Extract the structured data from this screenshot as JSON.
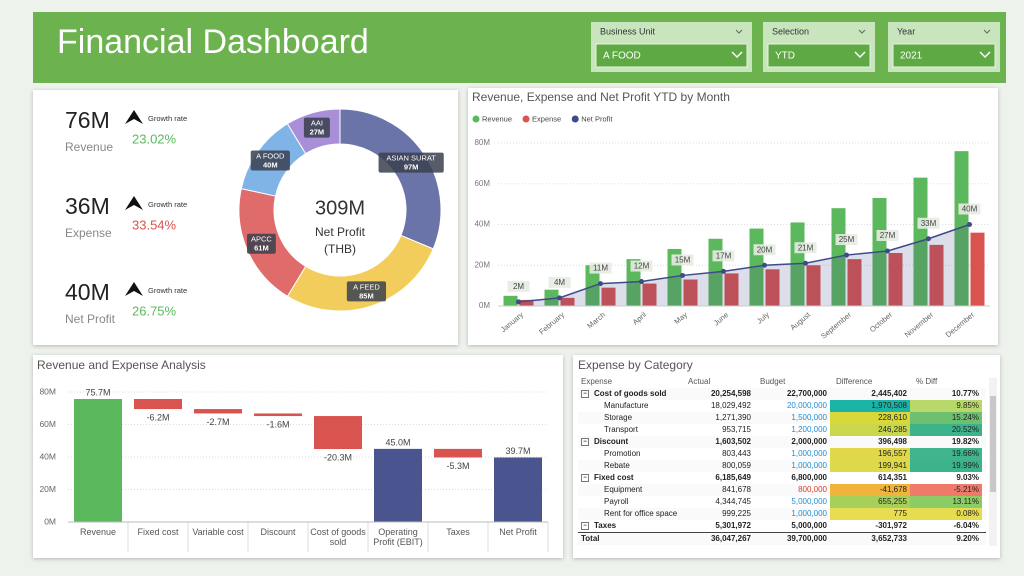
{
  "header": {
    "title": "Financial Dashboard"
  },
  "filters": [
    {
      "label": "Business Unit",
      "value": "A FOOD"
    },
    {
      "label": "Selection",
      "value": "YTD"
    },
    {
      "label": "Year",
      "value": "2021"
    }
  ],
  "kpis": [
    {
      "value": "76M",
      "label": "Revenue",
      "growth_label": "Growth rate",
      "growth": "23.02%",
      "color": "#5cb85c"
    },
    {
      "value": "36M",
      "label": "Expense",
      "growth_label": "Growth rate",
      "growth": "33.54%",
      "color": "#d9534f"
    },
    {
      "value": "40M",
      "label": "Net Profit",
      "growth_label": "Growth rate",
      "growth": "26.75%",
      "color": "#5cb85c"
    }
  ],
  "chart_data": [
    {
      "type": "pie",
      "hole": true,
      "center_texts": [
        "309M",
        "Net Profit",
        "(THB)"
      ],
      "categories": [
        "ASIAN SURAT",
        "A FEED",
        "APCC",
        "A FOOD",
        "AAI"
      ],
      "values": [
        97,
        85,
        61,
        40,
        27
      ],
      "value_labels": [
        "97M",
        "85M",
        "61M",
        "40M",
        "27M"
      ],
      "colors": [
        "#6b74a8",
        "#f2cd5c",
        "#df6b6b",
        "#80b3e6",
        "#a88fd8"
      ]
    },
    {
      "type": "bar",
      "title": "Revenue, Expense and Net Profit YTD by Month",
      "categories": [
        "January",
        "February",
        "March",
        "April",
        "May",
        "June",
        "July",
        "August",
        "September",
        "October",
        "November",
        "December"
      ],
      "series": [
        {
          "name": "Revenue",
          "color": "#5cb85c",
          "values": [
            5,
            8,
            20,
            23,
            28,
            33,
            38,
            41,
            48,
            53,
            63,
            76
          ]
        },
        {
          "name": "Expense",
          "color": "#d9534f",
          "values": [
            3,
            4,
            9,
            11,
            13,
            16,
            18,
            20,
            23,
            26,
            30,
            36
          ]
        },
        {
          "name": "Net Profit",
          "color": "#3f4a8a",
          "type": "line",
          "values": [
            2,
            4,
            11,
            12,
            15,
            17,
            20,
            21,
            25,
            27,
            33,
            40
          ],
          "value_labels": [
            "2M",
            "4M",
            "11M",
            "12M",
            "15M",
            "17M",
            "20M",
            "21M",
            "25M",
            "27M",
            "33M",
            "40M"
          ]
        }
      ],
      "ylim": [
        0,
        80
      ],
      "yticks": [
        {
          "value": 0,
          "label": "0M"
        },
        {
          "value": 20,
          "label": "20M"
        },
        {
          "value": 40,
          "label": "40M"
        },
        {
          "value": 60,
          "label": "60M"
        },
        {
          "value": 80,
          "label": "80M"
        }
      ],
      "grid": true,
      "legend": "top-left"
    },
    {
      "type": "waterfall",
      "title": "Revenue and Expense Analysis",
      "categories": [
        "Revenue",
        "Fixed cost",
        "Variable cost",
        "Discount",
        "Cost of goods sold",
        "Operating Profit (EBIT)",
        "Taxes",
        "Net Profit"
      ],
      "values": [
        75.7,
        -6.2,
        -2.7,
        -1.6,
        -20.3,
        45.0,
        -5.3,
        39.7
      ],
      "value_labels": [
        "75.7M",
        "-6.2M",
        "-2.7M",
        "-1.6M",
        "-20.3M",
        "45.0M",
        "-5.3M",
        "39.7M"
      ],
      "totals": [
        false,
        false,
        false,
        false,
        false,
        true,
        false,
        true
      ],
      "colors": {
        "increase": "#5cb85c",
        "decrease": "#d9534f",
        "total": "#4a5590"
      },
      "ylim": [
        0,
        80
      ],
      "yticks": [
        {
          "value": 0,
          "label": "0M"
        },
        {
          "value": 20,
          "label": "20M"
        },
        {
          "value": 40,
          "label": "40M"
        },
        {
          "value": 60,
          "label": "60M"
        },
        {
          "value": 80,
          "label": "80M"
        }
      ],
      "grid": true
    }
  ],
  "table": {
    "title": "Expense by Category",
    "columns": [
      "Expense",
      "Actual",
      "Budget",
      "Difference",
      "% Diff"
    ],
    "rows": [
      [
        "Cost of goods sold",
        "20,254,598",
        "22,700,000",
        "2,445,402",
        "10.77%"
      ],
      [
        "Manufacture",
        "18,029,492",
        "20,000,000",
        "1,970,508",
        "9.85%"
      ],
      [
        "Storage",
        "1,271,390",
        "1,500,000",
        "228,610",
        "15.24%"
      ],
      [
        "Transport",
        "953,715",
        "1,200,000",
        "246,285",
        "20.52%"
      ],
      [
        "Discount",
        "1,603,502",
        "2,000,000",
        "396,498",
        "19.82%"
      ],
      [
        "Promotion",
        "803,443",
        "1,000,000",
        "196,557",
        "19.66%"
      ],
      [
        "Rebate",
        "800,059",
        "1,000,000",
        "199,941",
        "19.99%"
      ],
      [
        "Fixed cost",
        "6,185,649",
        "6,800,000",
        "614,351",
        "9.03%"
      ],
      [
        "Equipment",
        "841,678",
        "800,000",
        "-41,678",
        "-5.21%"
      ],
      [
        "Payroll",
        "4,344,745",
        "5,000,000",
        "655,255",
        "13.11%"
      ],
      [
        "Rent for office space",
        "999,225",
        "1,000,000",
        "775",
        "0.08%"
      ],
      [
        "Taxes",
        "5,301,972",
        "5,000,000",
        "-301,972",
        "-6.04%"
      ],
      [
        "Total",
        "36,047,267",
        "39,700,000",
        "3,652,733",
        "9.20%"
      ]
    ]
  }
}
